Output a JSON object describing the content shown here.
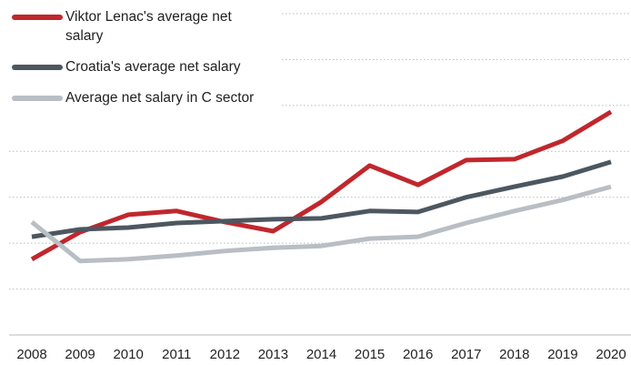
{
  "chart_data": {
    "type": "line",
    "categories": [
      "2008",
      "2009",
      "2010",
      "2011",
      "2012",
      "2013",
      "2014",
      "2015",
      "2016",
      "2017",
      "2018",
      "2019",
      "2020"
    ],
    "series": [
      {
        "name": "Viktor Lenac's average net salary",
        "color": "#c0272d",
        "values": [
          1.65,
          2.24,
          2.62,
          2.7,
          2.46,
          2.26,
          2.9,
          3.69,
          3.27,
          3.81,
          3.83,
          4.23,
          4.86
        ]
      },
      {
        "name": "Croatia's average net salary",
        "color": "#4d5760",
        "values": [
          2.14,
          2.3,
          2.34,
          2.44,
          2.48,
          2.52,
          2.54,
          2.7,
          2.68,
          3.0,
          3.23,
          3.45,
          3.77
        ]
      },
      {
        "name": "Average net salary in C sector",
        "color": "#b8bec4",
        "values": [
          2.46,
          1.61,
          1.65,
          1.73,
          1.83,
          1.9,
          1.94,
          2.1,
          2.14,
          2.44,
          2.7,
          2.94,
          3.23
        ]
      }
    ],
    "ylim": [
      0,
      7
    ],
    "yticks": [
      1,
      2,
      3,
      4,
      5,
      6,
      7
    ],
    "grid": true,
    "legend": "top-left"
  }
}
